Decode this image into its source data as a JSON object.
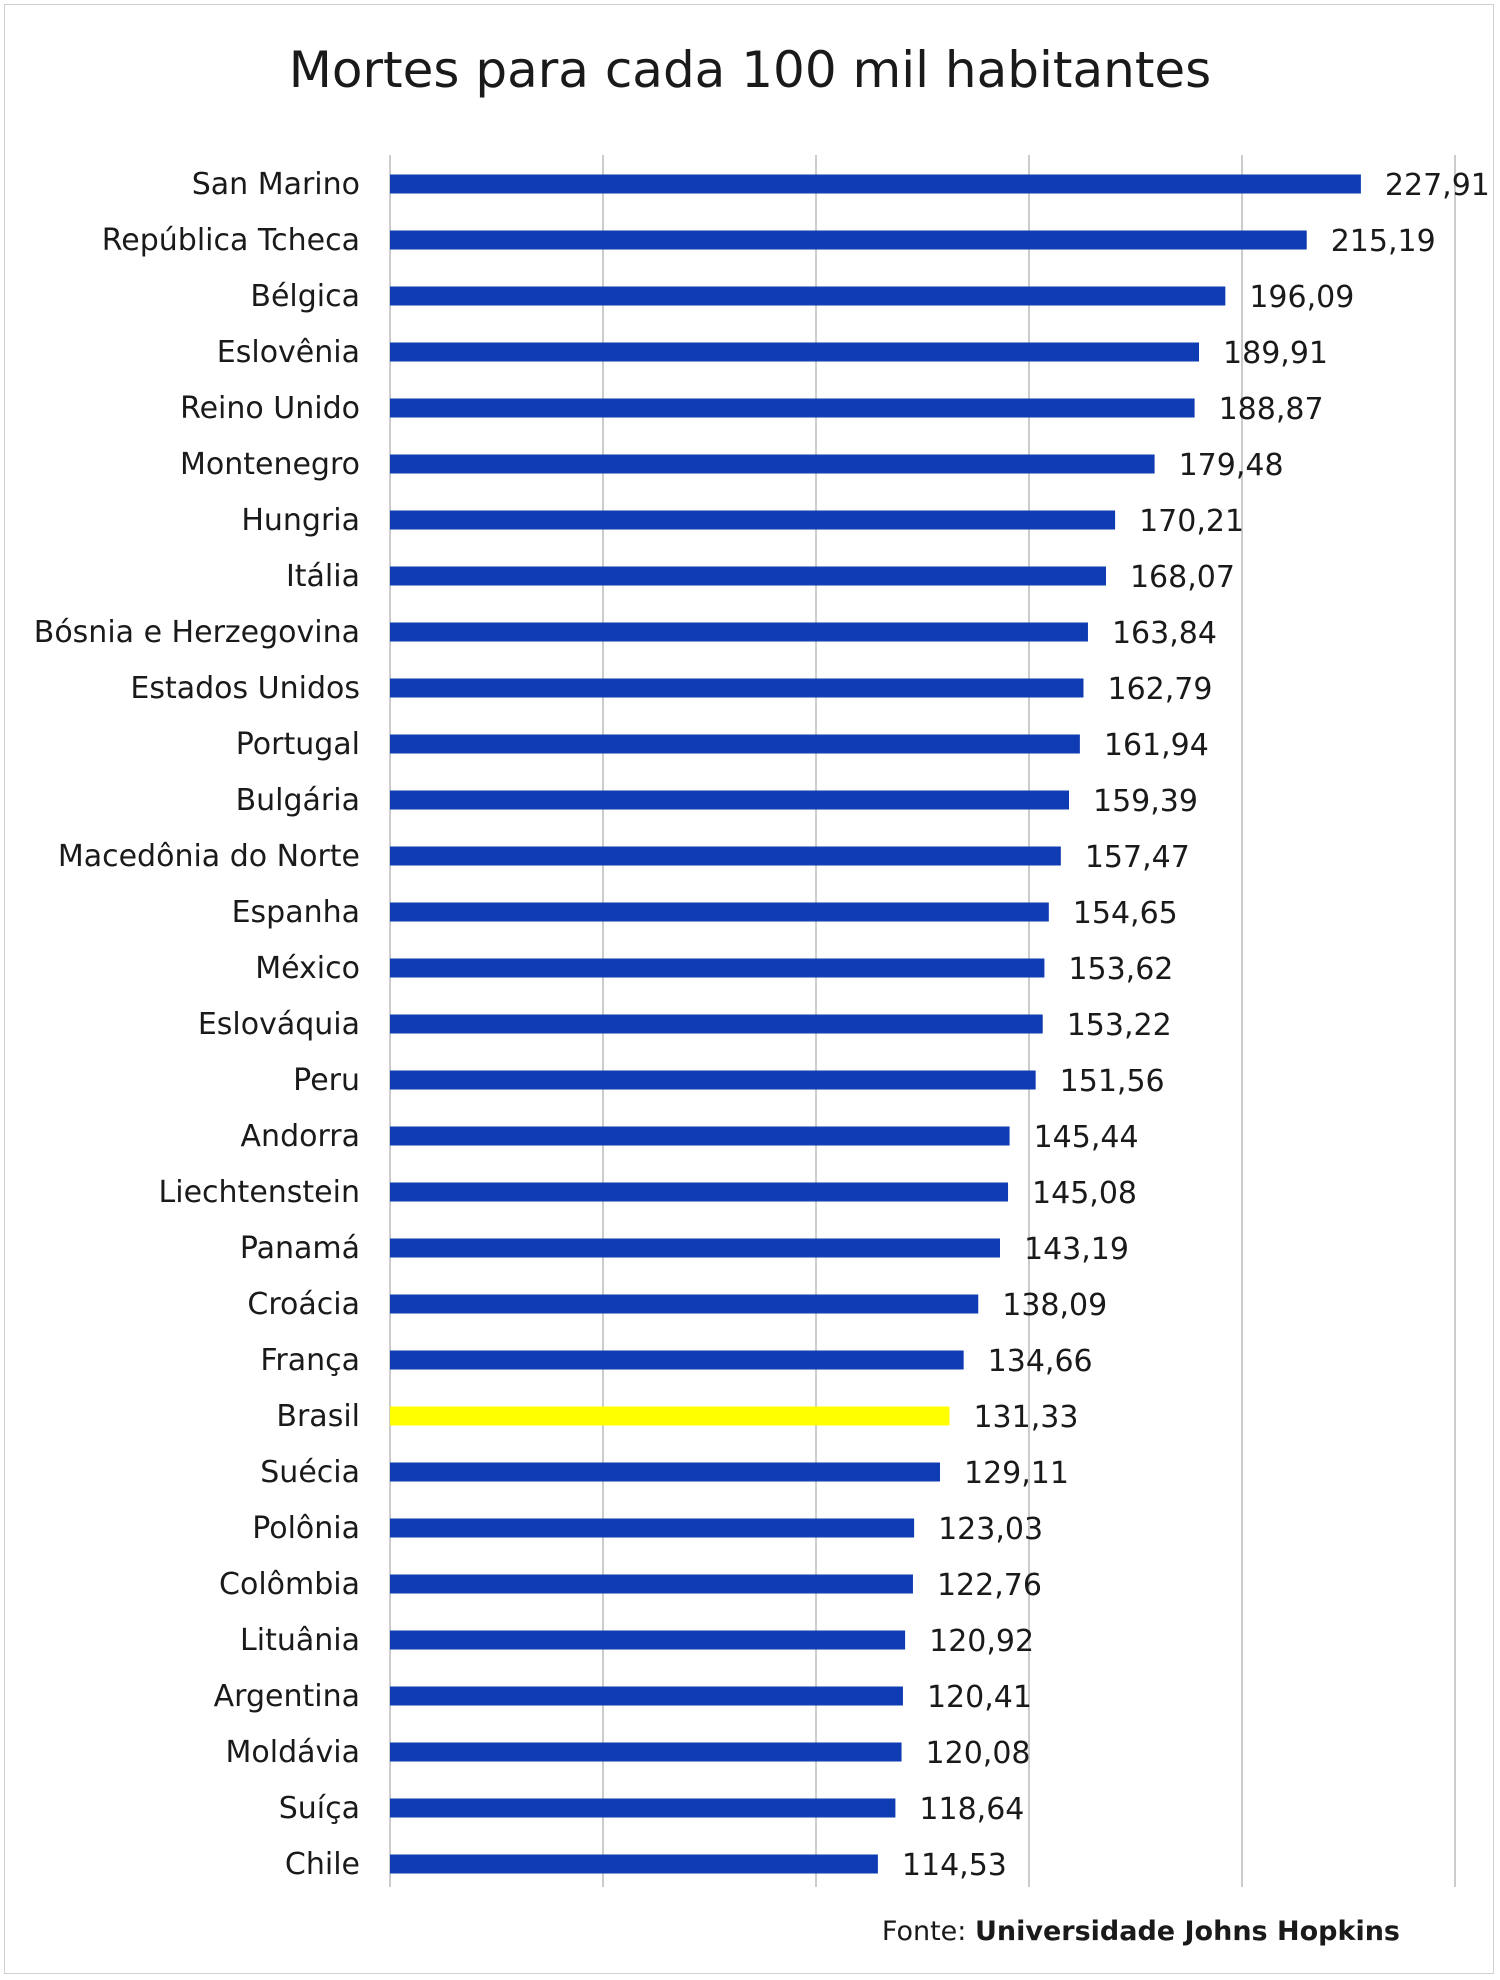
{
  "chart_data": {
    "type": "bar",
    "orientation": "horizontal",
    "title": "Mortes para cada 100 mil habitantes",
    "categories": [
      "San Marino",
      "República Tcheca",
      "Bélgica",
      "Eslovênia",
      "Reino Unido",
      "Montenegro",
      "Hungria",
      "Itália",
      "Bósnia e Herzegovina",
      "Estados Unidos",
      "Portugal",
      "Bulgária",
      "Macedônia do Norte",
      "Espanha",
      "México",
      "Eslováquia",
      "Peru",
      "Andorra",
      "Liechtenstein",
      "Panamá",
      "Croácia",
      "França",
      "Brasil",
      "Suécia",
      "Polônia",
      "Colômbia",
      "Lituânia",
      "Argentina",
      "Moldávia",
      "Suíça",
      "Chile"
    ],
    "values": [
      227.91,
      215.19,
      196.09,
      189.91,
      188.87,
      179.48,
      170.21,
      168.07,
      163.84,
      162.79,
      161.94,
      159.39,
      157.47,
      154.65,
      153.62,
      153.22,
      151.56,
      145.44,
      145.08,
      143.19,
      138.09,
      134.66,
      131.33,
      129.11,
      123.03,
      122.76,
      120.92,
      120.41,
      120.08,
      118.64,
      114.53
    ],
    "value_labels": [
      "227,91",
      "215,19",
      "196,09",
      "189,91",
      "188,87",
      "179,48",
      "170,21",
      "168,07",
      "163,84",
      "162,79",
      "161,94",
      "159,39",
      "157,47",
      "154,65",
      "153,62",
      "153,22",
      "151,56",
      "145,44",
      "145,08",
      "143,19",
      "138,09",
      "134,66",
      "131,33",
      "129,11",
      "123,03",
      "122,76",
      "120,92",
      "120,41",
      "120,08",
      "118,64",
      "114,53"
    ],
    "xlim": [
      0,
      250
    ],
    "grid": true,
    "gridlines_at": [
      0,
      50,
      100,
      150,
      200,
      250
    ],
    "bar_color": "#0f3cb3",
    "highlight_category": "Brasil",
    "highlight_color": "#ffff00",
    "legend": "none"
  },
  "source": {
    "prefix": "Fonte: ",
    "name": "Universidade Johns Hopkins"
  }
}
